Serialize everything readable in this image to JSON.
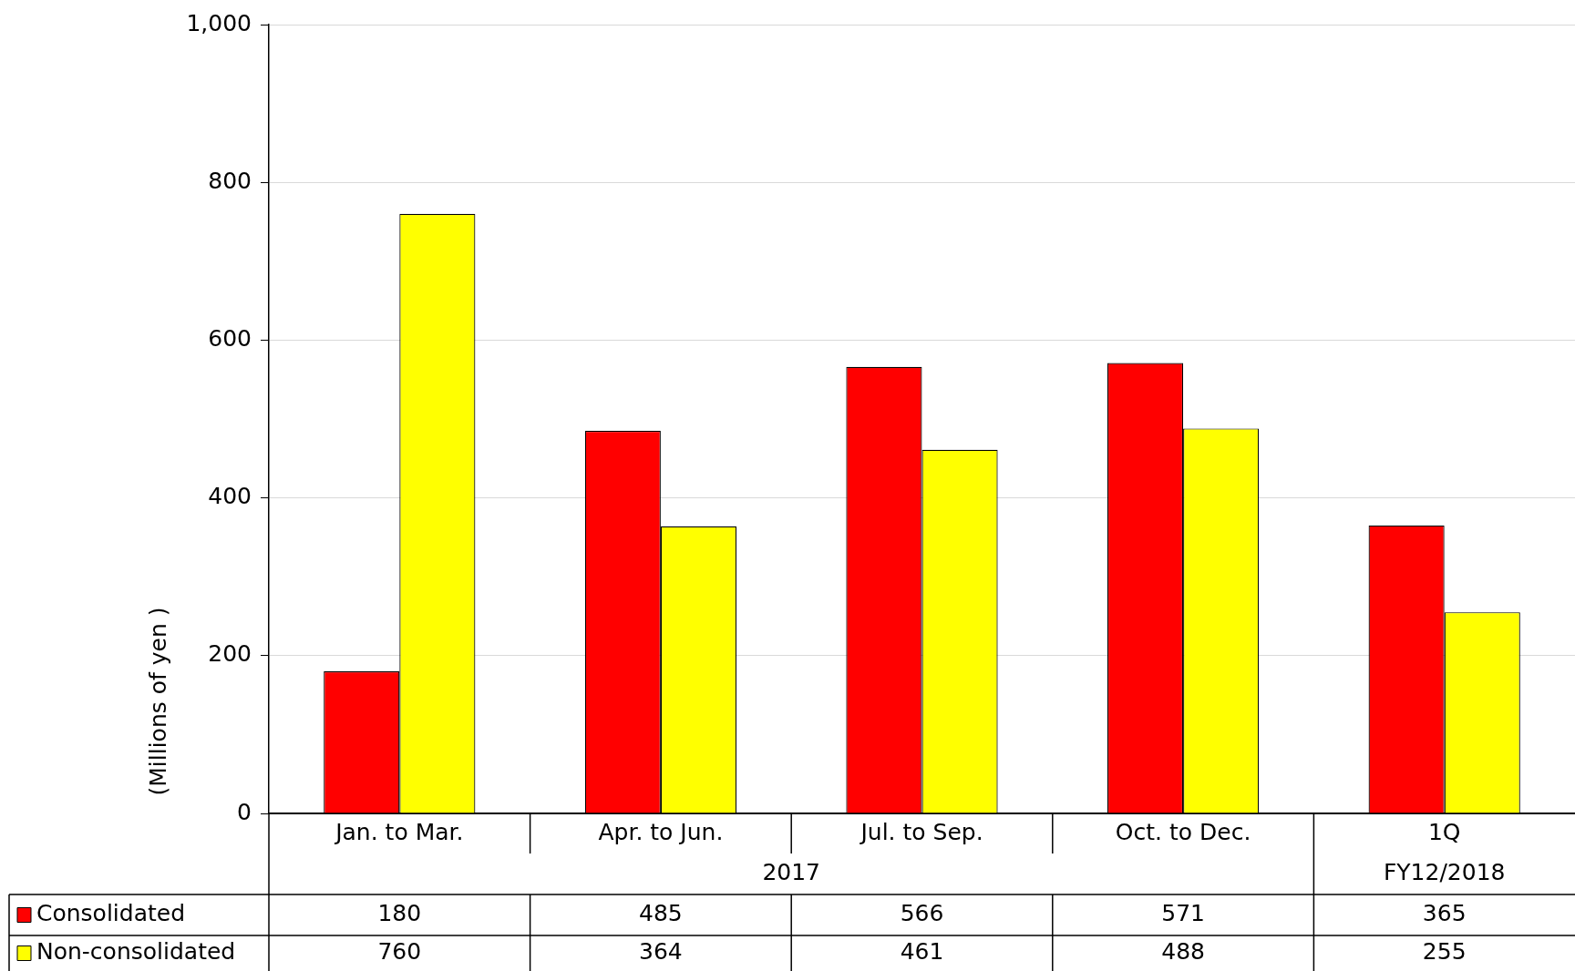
{
  "chart_data": {
    "type": "bar",
    "ylabel": "(Millions of yen )",
    "categories": [
      "Jan. to Mar.",
      "Apr. to Jun.",
      "Jul. to Sep.",
      "Oct. to Dec.",
      "1Q"
    ],
    "annotations": [
      "2017",
      "FY12/2018"
    ],
    "series": [
      {
        "name": "Consolidated",
        "color": "#ff0000",
        "values": [
          180,
          485,
          566,
          571,
          365
        ]
      },
      {
        "name": "Non-consolidated",
        "color": "#ffff00",
        "values": [
          760,
          364,
          461,
          488,
          255
        ]
      }
    ],
    "ylim": [
      0,
      1000
    ],
    "yticks": [
      0,
      200,
      400,
      600,
      800,
      {
        "value": 1000,
        "label": "1,000"
      }
    ],
    "grid": "y",
    "legend": "bottom",
    "data_labels": true
  }
}
